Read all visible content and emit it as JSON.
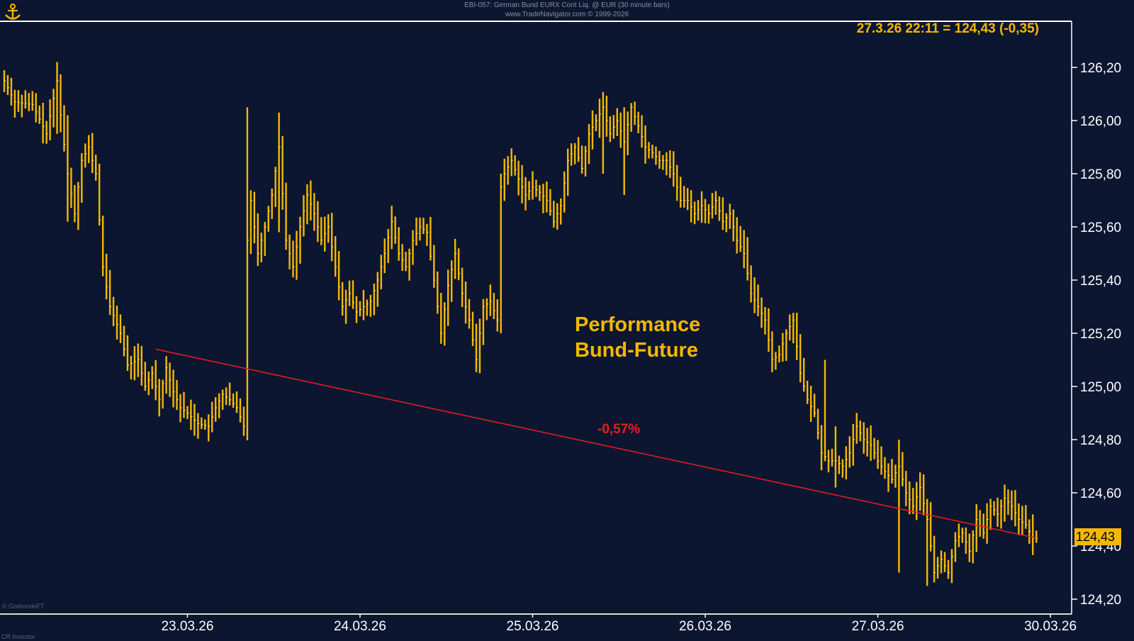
{
  "header": {
    "line1": "EBI-057:  German Bund EURX Cont Liq. @ EUR  (30 minute bars)",
    "line2": "www.TradeNavigator.com © 1999-2026"
  },
  "quote": "27.3.26 22:11 = 124,43 (-0,35)",
  "annotation": {
    "title_line1": "Performance",
    "title_line2": "Bund-Future",
    "trend_label": "-0,57%"
  },
  "last_price_label": "124,43",
  "credits": {
    "source": "© GodmodeFT",
    "publisher": "CR Investor"
  },
  "colors": {
    "background": "#0c1631",
    "bars": "#f5b800",
    "trendline": "#ee1b1b",
    "axis": "#ffffff",
    "text": "#ffffff"
  },
  "icons": {
    "logo": "anchor-logo-icon"
  },
  "chart_data": {
    "type": "ohlc",
    "ylim": [
      124.15,
      126.35
    ],
    "y_ticks": [
      124.2,
      124.4,
      124.6,
      124.8,
      125.0,
      125.2,
      125.4,
      125.6,
      125.8,
      126.0,
      126.2
    ],
    "y_tick_labels": [
      "124,20",
      "124,40",
      "124,60",
      "124,80",
      "125,00",
      "125,20",
      "125,40",
      "125,60",
      "125,80",
      "126,00",
      "126,20"
    ],
    "x_ticks": [
      {
        "label": "23.03.26",
        "index": 52
      },
      {
        "label": "24.03.26",
        "index": 101
      },
      {
        "label": "25.03.26",
        "index": 150
      },
      {
        "label": "26.03.26",
        "index": 199
      },
      {
        "label": "27.03.26",
        "index": 248
      },
      {
        "label": "30.03.26",
        "index": 297
      }
    ],
    "close_path": [
      [
        0,
        126.15
      ],
      [
        3,
        126.07
      ],
      [
        8,
        126.06
      ],
      [
        12,
        125.95
      ],
      [
        15,
        126.15
      ],
      [
        16,
        126.02
      ],
      [
        18,
        125.8
      ],
      [
        20,
        125.65
      ],
      [
        22,
        125.85
      ],
      [
        24,
        125.9
      ],
      [
        26,
        125.8
      ],
      [
        28,
        125.45
      ],
      [
        30,
        125.3
      ],
      [
        33,
        125.2
      ],
      [
        35,
        125.08
      ],
      [
        38,
        125.1
      ],
      [
        40,
        125.0
      ],
      [
        42,
        125.05
      ],
      [
        44,
        124.95
      ],
      [
        46,
        125.07
      ],
      [
        48,
        124.98
      ],
      [
        50,
        124.92
      ],
      [
        52,
        124.9
      ],
      [
        55,
        124.86
      ],
      [
        58,
        124.85
      ],
      [
        60,
        124.92
      ],
      [
        62,
        124.97
      ],
      [
        64,
        124.95
      ],
      [
        66,
        124.92
      ],
      [
        68,
        124.85
      ],
      [
        69,
        125.55
      ],
      [
        70,
        125.7
      ],
      [
        72,
        125.5
      ],
      [
        74,
        125.6
      ],
      [
        76,
        125.72
      ],
      [
        78,
        125.9
      ],
      [
        80,
        125.55
      ],
      [
        82,
        125.45
      ],
      [
        84,
        125.6
      ],
      [
        86,
        125.72
      ],
      [
        88,
        125.65
      ],
      [
        90,
        125.55
      ],
      [
        92,
        125.6
      ],
      [
        94,
        125.45
      ],
      [
        96,
        125.3
      ],
      [
        98,
        125.35
      ],
      [
        100,
        125.28
      ],
      [
        102,
        125.3
      ],
      [
        104,
        125.32
      ],
      [
        106,
        125.4
      ],
      [
        108,
        125.5
      ],
      [
        110,
        125.62
      ],
      [
        112,
        125.5
      ],
      [
        114,
        125.45
      ],
      [
        116,
        125.55
      ],
      [
        118,
        125.6
      ],
      [
        120,
        125.58
      ],
      [
        122,
        125.4
      ],
      [
        124,
        125.2
      ],
      [
        126,
        125.38
      ],
      [
        128,
        125.5
      ],
      [
        130,
        125.35
      ],
      [
        132,
        125.25
      ],
      [
        134,
        125.1
      ],
      [
        136,
        125.3
      ],
      [
        138,
        125.32
      ],
      [
        140,
        125.25
      ],
      [
        141,
        125.75
      ],
      [
        142,
        125.8
      ],
      [
        144,
        125.85
      ],
      [
        146,
        125.78
      ],
      [
        148,
        125.72
      ],
      [
        150,
        125.75
      ],
      [
        152,
        125.73
      ],
      [
        154,
        125.7
      ],
      [
        156,
        125.62
      ],
      [
        158,
        125.68
      ],
      [
        160,
        125.85
      ],
      [
        162,
        125.9
      ],
      [
        164,
        125.82
      ],
      [
        166,
        125.95
      ],
      [
        168,
        126.0
      ],
      [
        170,
        126.05
      ],
      [
        172,
        125.95
      ],
      [
        174,
        126.0
      ],
      [
        176,
        125.92
      ],
      [
        178,
        126.05
      ],
      [
        180,
        125.98
      ],
      [
        182,
        125.9
      ],
      [
        184,
        125.88
      ],
      [
        186,
        125.85
      ],
      [
        188,
        125.85
      ],
      [
        190,
        125.8
      ],
      [
        192,
        125.7
      ],
      [
        194,
        125.7
      ],
      [
        196,
        125.65
      ],
      [
        198,
        125.68
      ],
      [
        200,
        125.65
      ],
      [
        202,
        125.7
      ],
      [
        204,
        125.62
      ],
      [
        206,
        125.65
      ],
      [
        208,
        125.55
      ],
      [
        210,
        125.5
      ],
      [
        212,
        125.35
      ],
      [
        214,
        125.3
      ],
      [
        216,
        125.25
      ],
      [
        218,
        125.1
      ],
      [
        220,
        125.12
      ],
      [
        222,
        125.2
      ],
      [
        224,
        125.25
      ],
      [
        226,
        125.05
      ],
      [
        228,
        124.95
      ],
      [
        230,
        124.9
      ],
      [
        232,
        124.75
      ],
      [
        234,
        124.72
      ],
      [
        236,
        124.72
      ],
      [
        238,
        124.7
      ],
      [
        240,
        124.75
      ],
      [
        242,
        124.85
      ],
      [
        244,
        124.8
      ],
      [
        246,
        124.78
      ],
      [
        248,
        124.72
      ],
      [
        250,
        124.68
      ],
      [
        252,
        124.65
      ],
      [
        254,
        124.7
      ],
      [
        256,
        124.6
      ],
      [
        258,
        124.55
      ],
      [
        260,
        124.62
      ],
      [
        262,
        124.5
      ],
      [
        264,
        124.3
      ],
      [
        266,
        124.35
      ],
      [
        268,
        124.3
      ],
      [
        270,
        124.42
      ],
      [
        272,
        124.45
      ],
      [
        274,
        124.38
      ],
      [
        276,
        124.5
      ],
      [
        278,
        124.45
      ],
      [
        280,
        124.55
      ],
      [
        282,
        124.52
      ],
      [
        284,
        124.58
      ],
      [
        286,
        124.55
      ],
      [
        288,
        124.5
      ],
      [
        290,
        124.48
      ],
      [
        292,
        124.43
      ]
    ],
    "spikes": [
      {
        "index": 69,
        "high": 126.05,
        "low": 124.8
      },
      {
        "index": 78,
        "high": 126.03,
        "low": 125.58
      },
      {
        "index": 141,
        "high": 125.8,
        "low": 125.2
      },
      {
        "index": 170,
        "high": 126.1,
        "low": 125.8
      },
      {
        "index": 176,
        "high": 126.05,
        "low": 125.72
      },
      {
        "index": 233,
        "high": 125.1,
        "low": 124.72
      },
      {
        "index": 236,
        "high": 124.85,
        "low": 124.62
      },
      {
        "index": 254,
        "high": 124.8,
        "low": 124.3
      },
      {
        "index": 262,
        "high": 124.5,
        "low": 124.25
      },
      {
        "index": 15,
        "high": 126.22,
        "low": 125.95
      },
      {
        "index": 18,
        "high": 126.02,
        "low": 125.62
      }
    ],
    "trendline": {
      "from": {
        "index": 43,
        "value": 125.14
      },
      "to": {
        "index": 293,
        "value": 124.43
      },
      "label": "-0,57%"
    },
    "last": 124.43,
    "bar_count": 294
  }
}
